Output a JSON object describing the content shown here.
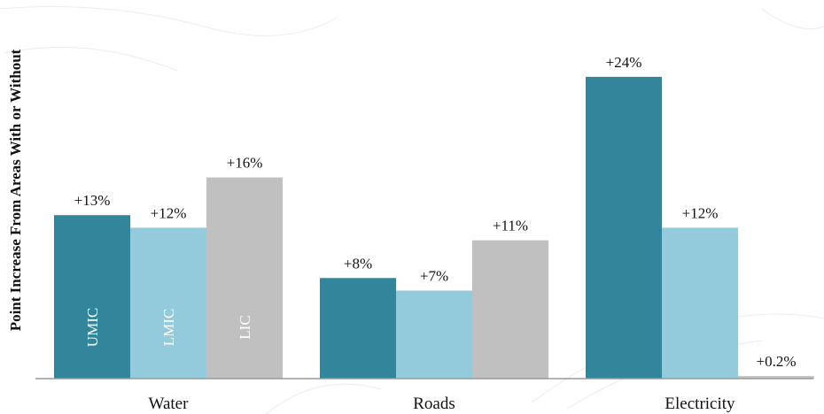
{
  "chart_data": {
    "type": "bar",
    "ylabel": "Point Increase From Areas With or Without",
    "categories": [
      "Water",
      "Roads",
      "Electricity"
    ],
    "ylim": [
      0,
      28
    ],
    "grid": false,
    "series": [
      {
        "name": "UMIC",
        "color": "#32859B",
        "values": [
          13,
          8,
          24
        ],
        "labels": [
          "+13%",
          "+8%",
          "+24%"
        ]
      },
      {
        "name": "LMIC",
        "color": "#93CADC",
        "values": [
          12,
          7,
          12
        ],
        "labels": [
          "+12%",
          "+7%",
          "+12%"
        ]
      },
      {
        "name": "LIC",
        "color": "#C0C0C0",
        "values": [
          16,
          11,
          0.2
        ],
        "labels": [
          "+16%",
          "+11%",
          "+0.2%"
        ]
      }
    ]
  }
}
